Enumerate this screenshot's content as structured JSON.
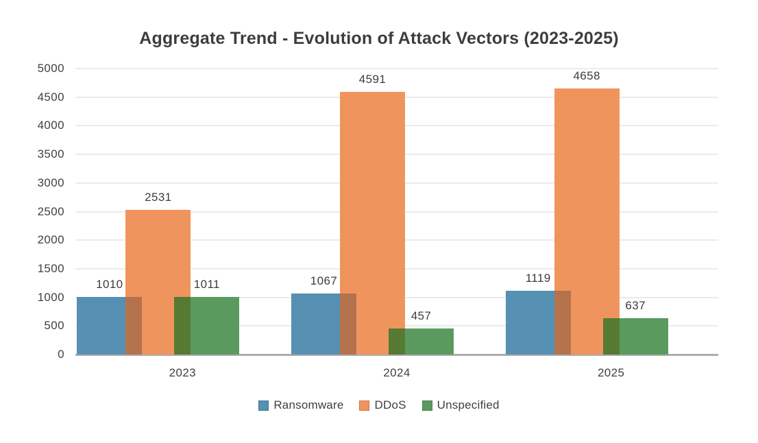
{
  "chart_data": {
    "type": "bar",
    "title": "Aggregate Trend - Evolution of Attack Vectors (2023-2025)",
    "categories": [
      "2023",
      "2024",
      "2025"
    ],
    "series": [
      {
        "name": "Ransomware",
        "color": "#5690B3",
        "values": [
          1010,
          1067,
          1119
        ]
      },
      {
        "name": "DDoS",
        "color": "#F0945E",
        "values": [
          2531,
          4591,
          4658
        ]
      },
      {
        "name": "Unspecified",
        "color": "#5B9A5E",
        "values": [
          1011,
          457,
          637
        ]
      }
    ],
    "overlap_colors": [
      {
        "between": [
          "Ransomware",
          "DDoS"
        ],
        "color": "#B4724D"
      },
      {
        "between": [
          "DDoS",
          "Unspecified"
        ],
        "color": "#567A32"
      }
    ],
    "ylim": [
      0,
      5000
    ],
    "yticks": [
      0,
      500,
      1000,
      1500,
      2000,
      2500,
      3000,
      3500,
      4000,
      4500,
      5000
    ],
    "grid": true,
    "data_labels": true,
    "legend_position": "bottom",
    "styles": {
      "grid_color": "#EBEBEB",
      "axis_color": "#ADADAD",
      "text_color": "#3F3F3F",
      "background": "#FFFFFF"
    }
  }
}
